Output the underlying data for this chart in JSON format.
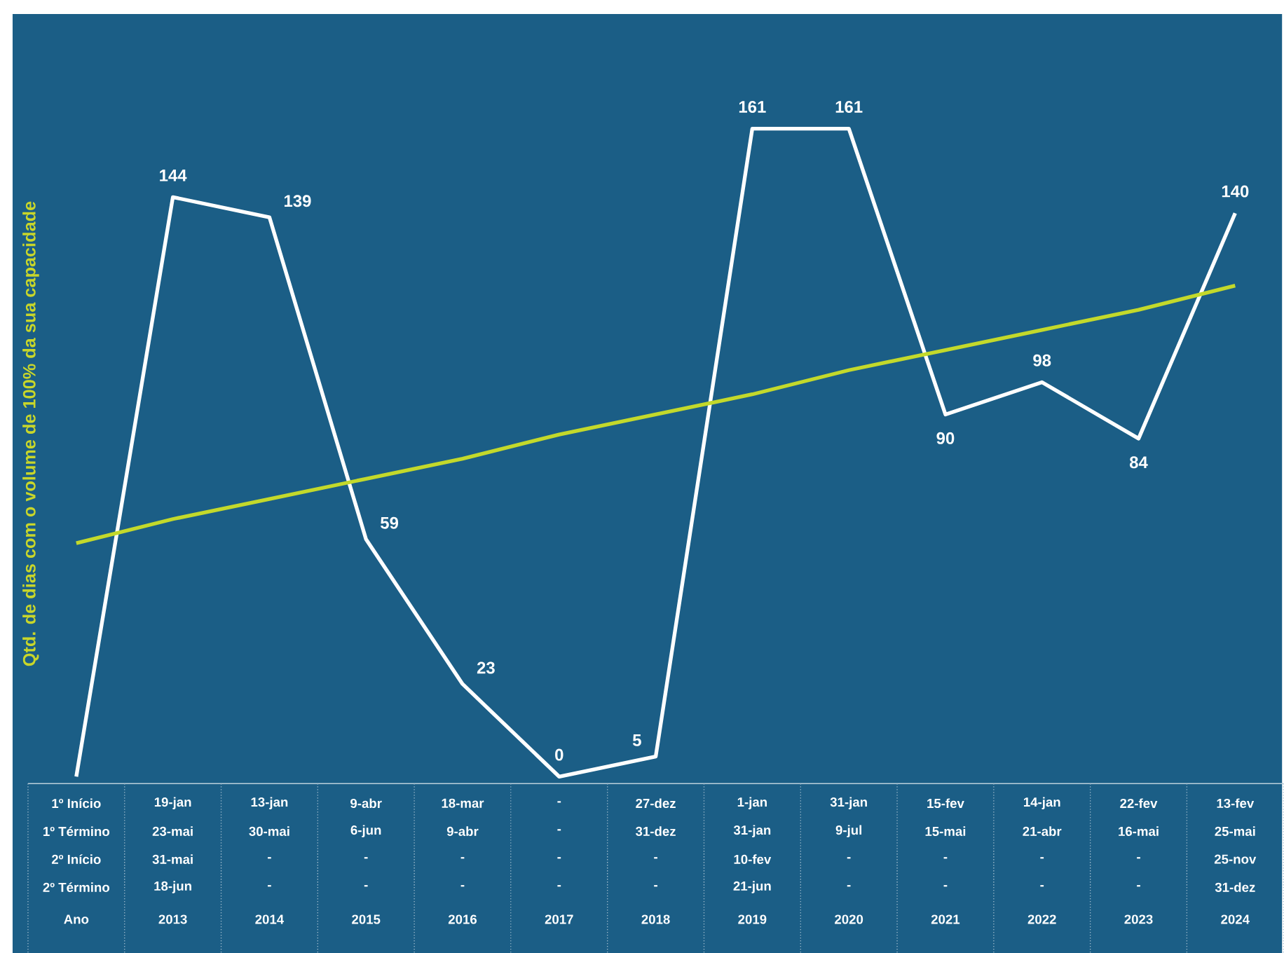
{
  "chart_data": {
    "type": "line",
    "ylabel": "Qtd. de dias com o volume de 100% da sua capacidade",
    "categories": [
      null,
      "2013",
      "2014",
      "2015",
      "2016",
      "2017",
      "2018",
      "2019",
      "2020",
      "2021",
      "2022",
      "2023",
      "2024"
    ],
    "series": [
      {
        "color": "#ffffff",
        "values": [
          0,
          144,
          139,
          59,
          23,
          0,
          5,
          161,
          161,
          90,
          98,
          84,
          140
        ],
        "value_labels": [
          null,
          "144",
          "139",
          "59",
          "23",
          "0",
          "5",
          "161",
          "161",
          "90",
          "98",
          "84",
          "140"
        ]
      },
      {
        "type": "line",
        "color": "#c3d92b",
        "values": [
          58,
          64,
          69,
          74,
          79,
          85,
          90,
          95,
          101,
          106,
          111,
          116,
          122
        ]
      }
    ],
    "annotations": [
      "1º Início",
      "1º Término",
      "2º Início",
      "2º Término",
      "Ano",
      "19-jan",
      "23-mai",
      "31-mai",
      "18-jun",
      "13-jan",
      "30-mai",
      "-",
      "-",
      "9-abr",
      "6-jun",
      "-",
      "-",
      "18-mar",
      "9-abr",
      "-",
      "-",
      "-",
      "-",
      "-",
      "-",
      "27-dez",
      "31-dez",
      "-",
      "-",
      "1-jan",
      "31-jan",
      "10-fev",
      "21-jun",
      "31-jan",
      "9-jul",
      "-",
      "-",
      "15-fev",
      "15-mai",
      "-",
      "-",
      "14-jan",
      "21-abr",
      "-",
      "-",
      "22-fev",
      "16-mai",
      "-",
      "-",
      "13-fev",
      "25-mai",
      "25-nov",
      "31-dez"
    ]
  }
}
